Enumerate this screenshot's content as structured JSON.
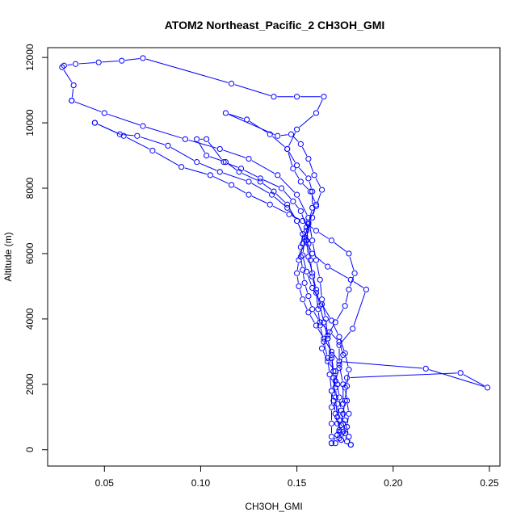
{
  "chart_data": {
    "type": "line",
    "title": "ATOM2 Northeast_Pacific_2 CH3OH_GMI",
    "xlabel": "CH3OH_GMI",
    "ylabel": "Altitude (m)",
    "xlim": [
      0.0205,
      0.2555
    ],
    "ylim": [
      -500,
      12300
    ],
    "xticks": [
      0.05,
      0.1,
      0.15,
      0.2,
      0.25
    ],
    "xtick_labels": [
      "0.05",
      "0.10",
      "0.15",
      "0.20",
      "0.25"
    ],
    "yticks": [
      0,
      2000,
      4000,
      6000,
      8000,
      10000,
      12000
    ],
    "ytick_labels": [
      "0",
      "2000",
      "4000",
      "6000",
      "8000",
      "10000",
      "12000"
    ],
    "grid": false,
    "marker": "open-circle",
    "color": "#0000FF",
    "series": [
      {
        "points": [
          [
            0.17,
            200
          ],
          [
            0.172,
            350
          ],
          [
            0.174,
            550
          ],
          [
            0.171,
            800
          ],
          [
            0.17,
            1100
          ],
          [
            0.169,
            1500
          ],
          [
            0.168,
            1800
          ],
          [
            0.17,
            2100
          ],
          [
            0.172,
            2500
          ],
          [
            0.174,
            2900
          ],
          [
            0.172,
            3300
          ],
          [
            0.167,
            3600
          ],
          [
            0.162,
            3900
          ],
          [
            0.158,
            4300
          ],
          [
            0.156,
            4700
          ],
          [
            0.154,
            5100
          ],
          [
            0.153,
            5500
          ],
          [
            0.152,
            5900
          ],
          [
            0.153,
            6300
          ],
          [
            0.155,
            6700
          ],
          [
            0.158,
            7100
          ],
          [
            0.16,
            7500
          ],
          [
            0.157,
            7900
          ],
          [
            0.152,
            8200
          ],
          [
            0.148,
            8600
          ],
          [
            0.145,
            9200
          ],
          [
            0.15,
            9800
          ],
          [
            0.16,
            10300
          ],
          [
            0.164,
            10800
          ],
          [
            0.15,
            10800
          ],
          [
            0.138,
            10800
          ],
          [
            0.116,
            11200
          ],
          [
            0.07,
            11980
          ],
          [
            0.059,
            11900
          ],
          [
            0.047,
            11850
          ],
          [
            0.035,
            11800
          ],
          [
            0.029,
            11750
          ],
          [
            0.028,
            11700
          ],
          [
            0.034,
            11150
          ],
          [
            0.033,
            10680
          ]
        ]
      },
      {
        "points": [
          [
            0.033,
            10680
          ],
          [
            0.05,
            10300
          ],
          [
            0.07,
            9900
          ],
          [
            0.092,
            9500
          ],
          [
            0.11,
            9200
          ],
          [
            0.125,
            8900
          ],
          [
            0.14,
            8400
          ],
          [
            0.15,
            7800
          ],
          [
            0.156,
            7100
          ],
          [
            0.158,
            6400
          ],
          [
            0.16,
            5800
          ],
          [
            0.162,
            5200
          ],
          [
            0.163,
            4600
          ],
          [
            0.165,
            4000
          ],
          [
            0.166,
            3400
          ],
          [
            0.168,
            2800
          ],
          [
            0.169,
            2200
          ],
          [
            0.17,
            1600
          ],
          [
            0.171,
            1000
          ],
          [
            0.172,
            600
          ],
          [
            0.173,
            300
          ]
        ]
      },
      {
        "points": [
          [
            0.173,
            300
          ],
          [
            0.176,
            700
          ],
          [
            0.177,
            1100
          ],
          [
            0.176,
            1500
          ],
          [
            0.175,
            1900
          ],
          [
            0.176,
            2200
          ],
          [
            0.235,
            2350
          ],
          [
            0.249,
            1900
          ],
          [
            0.217,
            2480
          ],
          [
            0.172,
            2700
          ],
          [
            0.168,
            3000
          ],
          [
            0.164,
            3400
          ],
          [
            0.16,
            3800
          ],
          [
            0.156,
            4200
          ],
          [
            0.153,
            4600
          ],
          [
            0.151,
            5000
          ],
          [
            0.15,
            5400
          ],
          [
            0.151,
            5800
          ],
          [
            0.152,
            6200
          ],
          [
            0.153,
            6600
          ],
          [
            0.15,
            7000
          ],
          [
            0.145,
            7400
          ],
          [
            0.137,
            7800
          ],
          [
            0.125,
            8200
          ],
          [
            0.11,
            8500
          ],
          [
            0.098,
            8800
          ],
          [
            0.083,
            9300
          ],
          [
            0.067,
            9600
          ],
          [
            0.058,
            9650
          ],
          [
            0.045,
            10000
          ]
        ]
      },
      {
        "points": [
          [
            0.045,
            10000
          ],
          [
            0.06,
            9600
          ],
          [
            0.075,
            9150
          ],
          [
            0.09,
            8650
          ],
          [
            0.105,
            8400
          ],
          [
            0.116,
            8100
          ],
          [
            0.125,
            7800
          ],
          [
            0.136,
            7500
          ],
          [
            0.146,
            7200
          ],
          [
            0.153,
            7000
          ],
          [
            0.16,
            6700
          ],
          [
            0.168,
            6400
          ],
          [
            0.177,
            6000
          ],
          [
            0.18,
            5400
          ],
          [
            0.177,
            4900
          ],
          [
            0.175,
            4400
          ],
          [
            0.17,
            3900
          ],
          [
            0.166,
            3500
          ],
          [
            0.163,
            3100
          ],
          [
            0.166,
            2700
          ],
          [
            0.17,
            2400
          ],
          [
            0.171,
            2000
          ],
          [
            0.172,
            1600
          ],
          [
            0.173,
            1200
          ],
          [
            0.174,
            800
          ],
          [
            0.175,
            500
          ],
          [
            0.176,
            250
          ],
          [
            0.178,
            150
          ]
        ]
      },
      {
        "points": [
          [
            0.178,
            150
          ],
          [
            0.177,
            400
          ],
          [
            0.175,
            900
          ],
          [
            0.174,
            1400
          ],
          [
            0.174,
            2000
          ],
          [
            0.172,
            2600
          ],
          [
            0.172,
            3200
          ],
          [
            0.179,
            3700
          ],
          [
            0.186,
            4900
          ],
          [
            0.178,
            5200
          ],
          [
            0.166,
            5600
          ],
          [
            0.158,
            6000
          ],
          [
            0.154,
            6500
          ],
          [
            0.15,
            7000
          ],
          [
            0.145,
            7500
          ],
          [
            0.138,
            7900
          ],
          [
            0.131,
            8200
          ],
          [
            0.12,
            8500
          ],
          [
            0.113,
            8800
          ],
          [
            0.103,
            9000
          ],
          [
            0.098,
            9500
          ],
          [
            0.103,
            9500
          ],
          [
            0.112,
            8800
          ],
          [
            0.121,
            8600
          ],
          [
            0.131,
            8300
          ],
          [
            0.142,
            8000
          ],
          [
            0.148,
            7600
          ],
          [
            0.152,
            7300
          ],
          [
            0.155,
            6800
          ],
          [
            0.156,
            6300
          ],
          [
            0.157,
            5800
          ],
          [
            0.158,
            5300
          ],
          [
            0.16,
            4800
          ],
          [
            0.161,
            4300
          ],
          [
            0.162,
            3800
          ],
          [
            0.164,
            3300
          ],
          [
            0.166,
            2800
          ],
          [
            0.167,
            2300
          ],
          [
            0.168,
            1800
          ],
          [
            0.168,
            1300
          ],
          [
            0.168,
            800
          ],
          [
            0.168,
            400
          ],
          [
            0.168,
            200
          ]
        ]
      },
      {
        "points": [
          [
            0.168,
            200
          ],
          [
            0.171,
            450
          ],
          [
            0.173,
            750
          ],
          [
            0.174,
            1100
          ],
          [
            0.175,
            1500
          ],
          [
            0.176,
            1950
          ],
          [
            0.177,
            2450
          ],
          [
            0.175,
            2950
          ],
          [
            0.172,
            3450
          ],
          [
            0.168,
            3950
          ],
          [
            0.163,
            4450
          ],
          [
            0.158,
            4950
          ],
          [
            0.155,
            5450
          ],
          [
            0.153,
            5950
          ],
          [
            0.154,
            6450
          ],
          [
            0.156,
            6950
          ],
          [
            0.16,
            7450
          ],
          [
            0.163,
            7950
          ],
          [
            0.159,
            8400
          ],
          [
            0.156,
            8900
          ],
          [
            0.152,
            9350
          ],
          [
            0.147,
            9650
          ],
          [
            0.14,
            9600
          ],
          [
            0.113,
            10300
          ],
          [
            0.124,
            10100
          ],
          [
            0.136,
            9650
          ],
          [
            0.145,
            9200
          ],
          [
            0.15,
            8700
          ],
          [
            0.156,
            8300
          ],
          [
            0.158,
            7900
          ],
          [
            0.158,
            7400
          ],
          [
            0.156,
            6900
          ],
          [
            0.155,
            6400
          ],
          [
            0.156,
            5900
          ],
          [
            0.158,
            5400
          ],
          [
            0.16,
            4900
          ],
          [
            0.162,
            4400
          ],
          [
            0.164,
            3900
          ],
          [
            0.166,
            3400
          ],
          [
            0.168,
            2900
          ],
          [
            0.169,
            2400
          ],
          [
            0.17,
            1900
          ],
          [
            0.171,
            1400
          ],
          [
            0.172,
            900
          ],
          [
            0.172,
            550
          ]
        ]
      }
    ]
  }
}
